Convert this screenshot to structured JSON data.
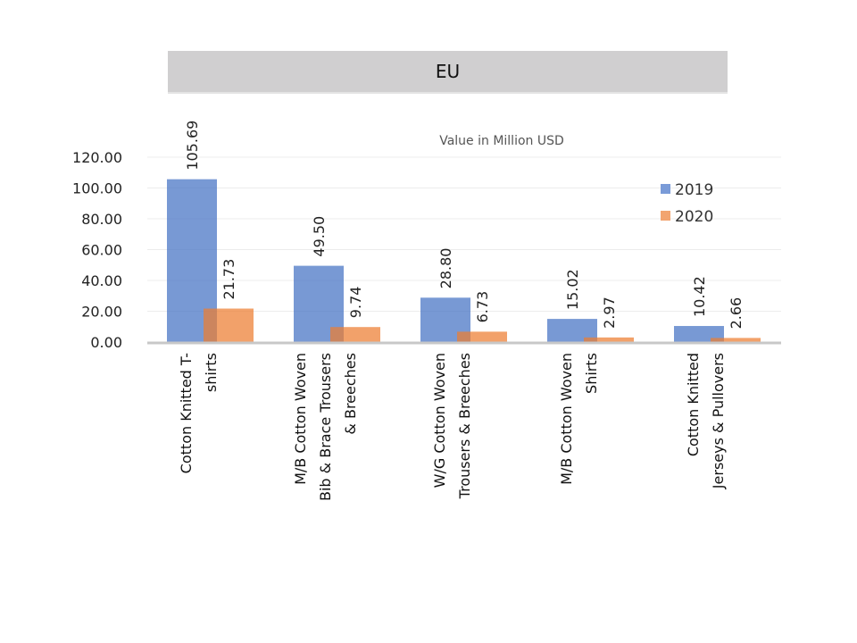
{
  "chart_data": {
    "type": "bar",
    "title": "EU",
    "subtitle": "Value in Million USD",
    "xlabel": "",
    "ylabel": "",
    "ylim": [
      0,
      120
    ],
    "yticks": [
      "0.00",
      "20.00",
      "40.00",
      "60.00",
      "80.00",
      "100.00",
      "120.00"
    ],
    "grid": true,
    "legend_position": "top-right",
    "categories": [
      [
        "Cotton Knitted  T-",
        "shirts"
      ],
      [
        "M/B Cotton Woven",
        "Bib & Brace Trousers",
        "& Breeches"
      ],
      [
        "W/G Cotton Woven",
        "Trousers & Breeches"
      ],
      [
        "M/B Cotton Woven",
        "Shirts"
      ],
      [
        "Cotton Knitted",
        "Jerseys & Pullovers"
      ]
    ],
    "series": [
      {
        "name": "2019",
        "color": "#7a9bd8",
        "values": [
          105.69,
          49.5,
          28.8,
          15.02,
          10.42
        ],
        "labels": [
          "105.69",
          "49.50",
          "28.80",
          "15.02",
          "10.42"
        ]
      },
      {
        "name": "2020",
        "color": "#f2a46f",
        "values": [
          21.73,
          9.74,
          6.73,
          2.97,
          2.66
        ],
        "labels": [
          "21.73",
          "9.74",
          "6.73",
          "2.97",
          "2.66"
        ]
      }
    ]
  }
}
